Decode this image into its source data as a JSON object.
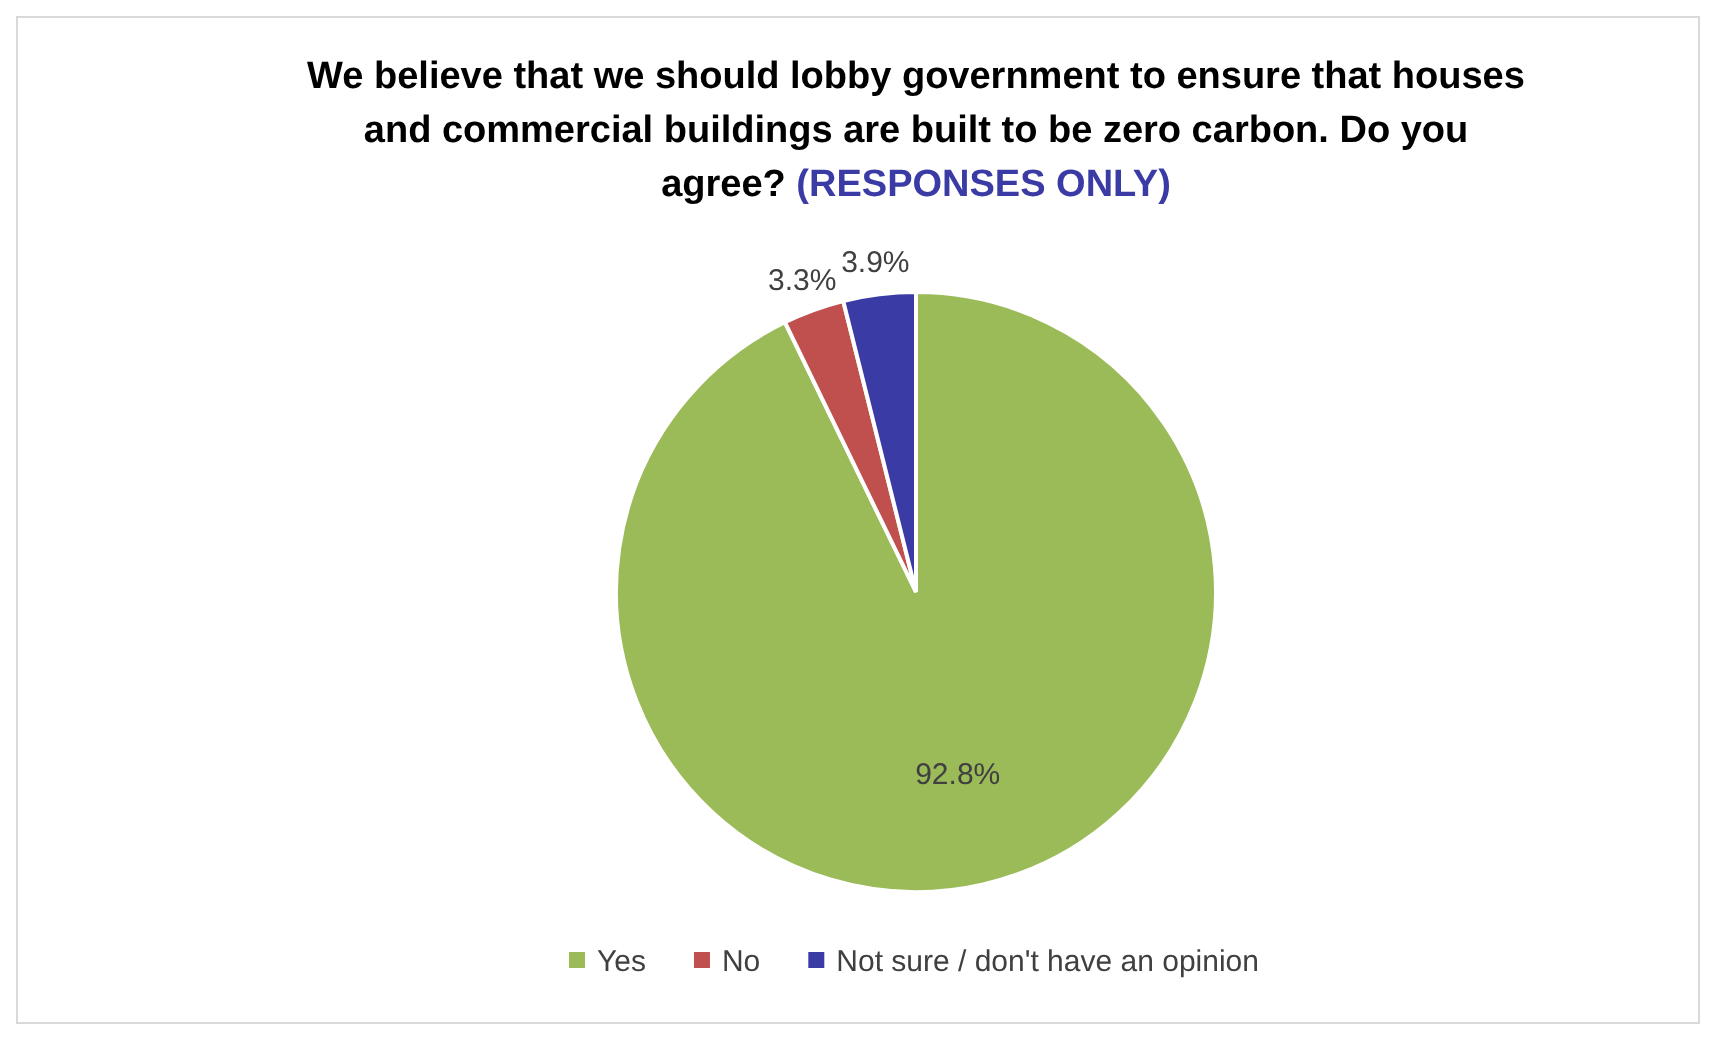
{
  "chart_data": {
    "type": "pie",
    "title": "We believe that we should lobby government to ensure that houses and commercial buildings are built to be zero carbon.  Do you agree?",
    "subtitle": "(RESPONSES ONLY)",
    "categories": [
      "Yes",
      "No",
      "Not sure / don't have an opinion"
    ],
    "values": [
      92.8,
      3.3,
      3.9
    ],
    "colors": [
      "#9bbb59",
      "#c0504d",
      "#3b3ba6"
    ],
    "value_labels": [
      "92.8%",
      "3.3%",
      "3.9%"
    ],
    "legend": "bottom"
  }
}
